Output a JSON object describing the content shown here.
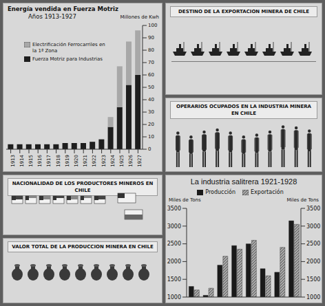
{
  "chart_data": [
    {
      "type": "bar",
      "title": "Energía vendida en Fuerza Motriz",
      "subtitle": "Años 1913-1927",
      "ylabel": "Millones de Kwh",
      "categories": [
        "1913",
        "1914",
        "1915",
        "1916",
        "1917",
        "1918",
        "1919",
        "1920",
        "1921",
        "1922",
        "1923",
        "1924",
        "1925",
        "1926",
        "1927"
      ],
      "series": [
        {
          "name": "Fuerza Motriz para Industrias",
          "color": "#1e1e1e",
          "values": [
            4,
            4,
            4,
            4,
            4,
            4,
            5,
            5,
            5,
            6,
            8,
            18,
            34,
            52,
            60
          ]
        },
        {
          "name": "Electrificación Ferrocarriles en la 1ª Zona",
          "color": "#a8a8a8",
          "values": [
            0,
            0,
            0,
            0,
            0,
            0,
            0,
            0,
            0,
            0,
            0,
            8,
            33,
            35,
            36
          ]
        }
      ],
      "stacked": true,
      "ylim": [
        0,
        100
      ],
      "yticks": [
        0,
        10,
        20,
        30,
        40,
        50,
        60,
        70,
        80,
        90,
        100
      ],
      "grid": false,
      "legend": "upper left"
    },
    {
      "type": "pictograph",
      "title": "DESTINO DE LA EXPORTACION MINERA DE CHILE",
      "marker": "ship"
    },
    {
      "type": "pictograph",
      "title": "OPERARIOS OCUPADOS EN LA INDUSTRIA MINERA EN CHILE",
      "marker": "worker",
      "values": [
        70,
        62,
        72,
        76,
        70,
        62,
        66,
        72,
        82,
        80,
        74
      ],
      "ylim": [
        0,
        100
      ],
      "tick_labels": false,
      "color": "#2b2b2b"
    },
    {
      "type": "pictograph",
      "title": "NACIONALIDAD DE LOS PRODUCTORES MINEROS EN CHILE",
      "marker": "flag"
    },
    {
      "type": "pictograph",
      "title": "VALOR TOTAL DE LA PRODUCCION MINERA EN CHILE",
      "marker": "bag"
    },
    {
      "type": "bar",
      "title": "La industria salitrera 1921-1928",
      "ylabel": "Miles de Tons",
      "y2label": "Miles de Tons",
      "categories": [
        null,
        null,
        null,
        null,
        null,
        null,
        null,
        null
      ],
      "series": [
        {
          "name": "Producción",
          "color": "#1a1a1a",
          "values": [
            1300,
            1050,
            1900,
            2450,
            2500,
            1800,
            1700,
            3150
          ]
        },
        {
          "name": "Exportación",
          "color": "#9a9a9a",
          "values": [
            1200,
            1250,
            2150,
            2350,
            2600,
            1600,
            2400,
            3050
          ],
          "axis": "y2"
        }
      ],
      "ylim": [
        1000,
        3500
      ],
      "yticks": [
        1000,
        1500,
        2000,
        2500,
        3000,
        3500
      ],
      "y2lim": [
        1000,
        3500
      ],
      "y2ticks": [
        1000,
        1500,
        2000,
        2500,
        3000,
        3500
      ],
      "legend": "top",
      "tick_labels": "y",
      "grid": false
    }
  ]
}
